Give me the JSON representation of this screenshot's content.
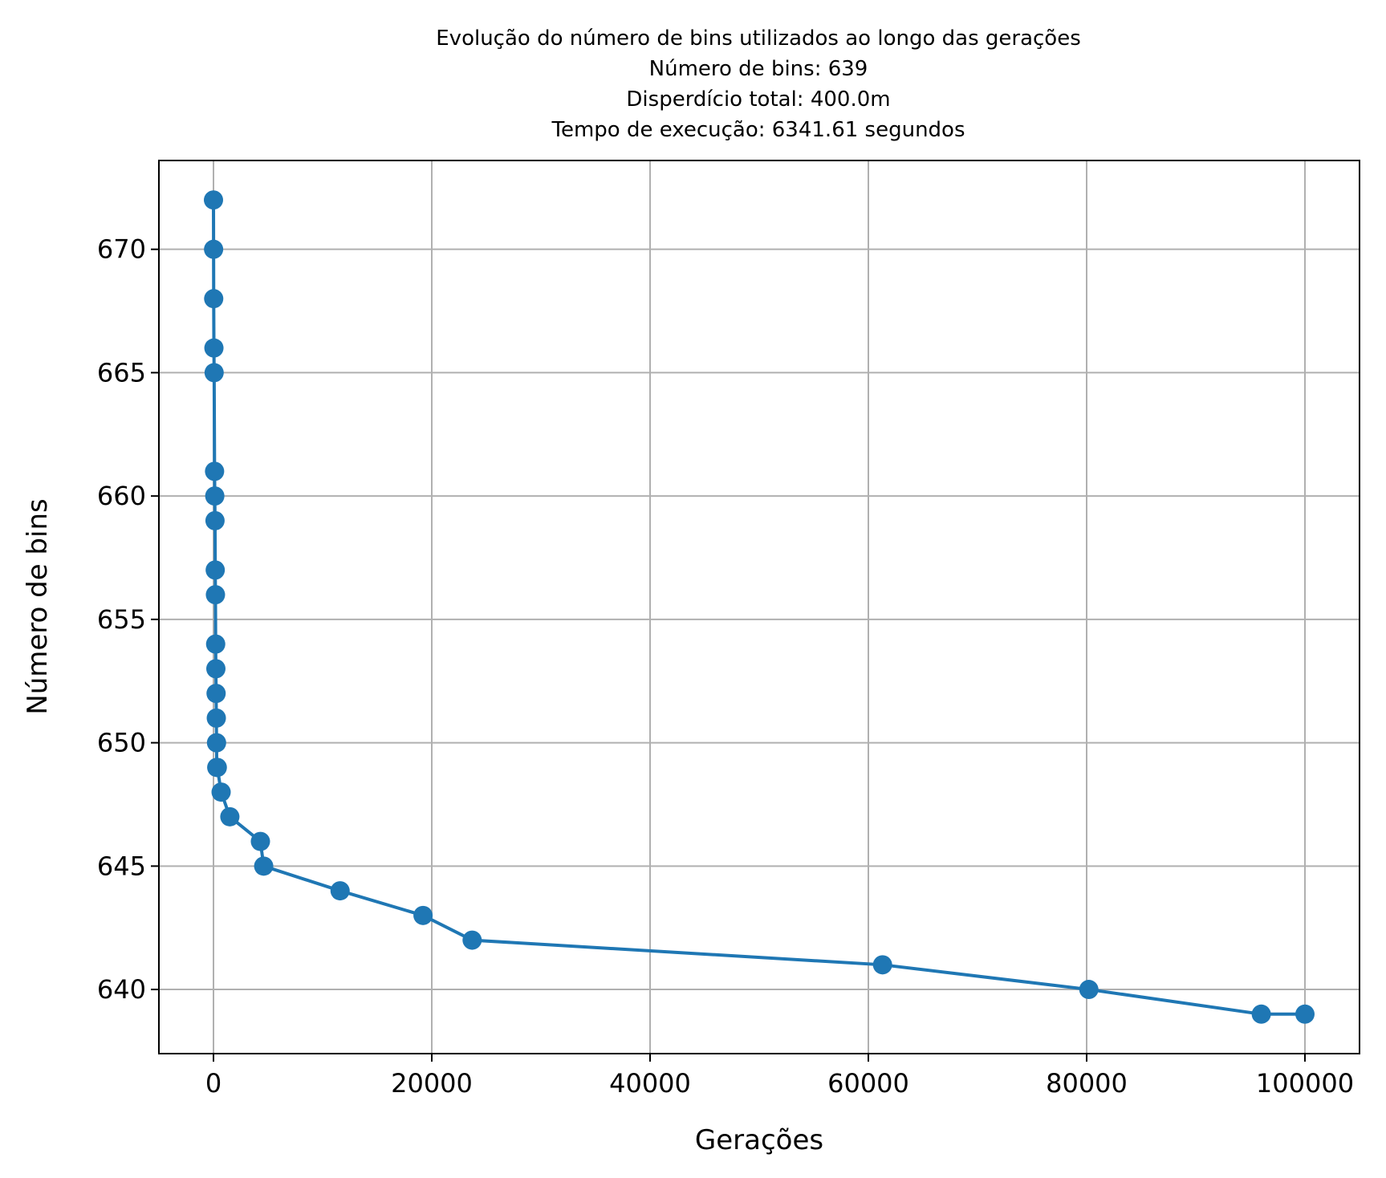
{
  "chart_data": {
    "type": "line",
    "title_lines": [
      "Evolução do número de bins utilizados ao longo das gerações",
      "Número de bins: 639",
      "Disperdício total: 400.0m",
      "Tempo de execução: 6341.61 segundos"
    ],
    "xlabel": "Gerações",
    "ylabel": "Número de bins",
    "xlim": [
      -5000,
      105000
    ],
    "ylim": [
      637.4,
      673.6
    ],
    "xticks": [
      0,
      20000,
      40000,
      60000,
      80000,
      100000
    ],
    "xtick_labels": [
      "0",
      "20000",
      "40000",
      "60000",
      "80000",
      "100000"
    ],
    "yticks": [
      640,
      645,
      650,
      655,
      660,
      665,
      670
    ],
    "ytick_labels": [
      "640",
      "645",
      "650",
      "655",
      "660",
      "665",
      "670"
    ],
    "grid": true,
    "color": "#1f77b4",
    "marker": "circle",
    "series": [
      {
        "x": [
          0,
          10,
          20,
          40,
          60,
          100,
          120,
          140,
          160,
          180,
          200,
          220,
          240,
          260,
          280,
          300,
          350,
          700,
          1500,
          4300,
          4600,
          11600,
          19200,
          23700,
          61300,
          80200,
          96000,
          100000
        ],
        "y": [
          672,
          670,
          668,
          666,
          665,
          661,
          660,
          659,
          657,
          656,
          654,
          653,
          652,
          651,
          650,
          649,
          649,
          648,
          647,
          646,
          645,
          644,
          643,
          642,
          641,
          640,
          639,
          639
        ]
      }
    ]
  }
}
